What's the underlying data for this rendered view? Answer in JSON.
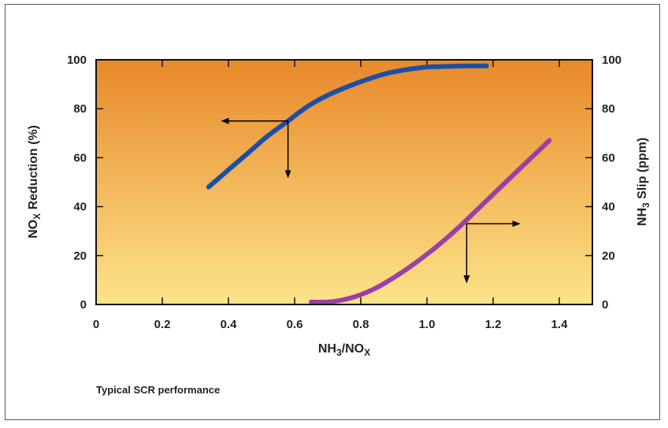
{
  "chart_data": {
    "type": "line",
    "caption": "Typical SCR performance",
    "xlabel": {
      "main": "NH",
      "sub1": "3",
      "mid": "/NO",
      "sub2": "X"
    },
    "ylabel_left": {
      "pre": "NO",
      "sub": "X",
      "post": " Reduction (%)"
    },
    "ylabel_right": {
      "pre": "NH",
      "sub": "3",
      "post": " Slip (ppm)"
    },
    "xlim": [
      0,
      1.5
    ],
    "ylim_left": [
      0,
      100
    ],
    "ylim_right": [
      0,
      100
    ],
    "x_ticks": [
      {
        "value": 0,
        "label": "0"
      },
      {
        "value": 0.2,
        "label": "0.2"
      },
      {
        "value": 0.4,
        "label": "0.4"
      },
      {
        "value": 0.6,
        "label": "0.6"
      },
      {
        "value": 0.8,
        "label": "0.8"
      },
      {
        "value": 1.0,
        "label": "1.0"
      },
      {
        "value": 1.2,
        "label": "1.2"
      },
      {
        "value": 1.4,
        "label": "1.4"
      }
    ],
    "y_ticks_left": [
      {
        "value": 0,
        "label": "0"
      },
      {
        "value": 20,
        "label": "20"
      },
      {
        "value": 40,
        "label": "40"
      },
      {
        "value": 60,
        "label": "60"
      },
      {
        "value": 80,
        "label": "80"
      },
      {
        "value": 100,
        "label": "100"
      }
    ],
    "y_ticks_right": [
      {
        "value": 0,
        "label": "0"
      },
      {
        "value": 20,
        "label": "20"
      },
      {
        "value": 40,
        "label": "40"
      },
      {
        "value": 60,
        "label": "60"
      },
      {
        "value": 80,
        "label": "80"
      },
      {
        "value": 100,
        "label": "100"
      }
    ],
    "background_gradient": {
      "top": "#E8892A",
      "bottom": "#FDE48A"
    },
    "series": [
      {
        "axis": "left",
        "color": "#1B4FA8",
        "x": [
          0.34,
          0.4,
          0.46,
          0.52,
          0.58,
          0.64,
          0.7,
          0.76,
          0.82,
          0.88,
          0.94,
          1.0,
          1.06,
          1.12,
          1.18
        ],
        "y": [
          48,
          55,
          62,
          69,
          75,
          81,
          85.5,
          89,
          92,
          94.5,
          96,
          97,
          97.3,
          97.5,
          97.5
        ]
      },
      {
        "axis": "right",
        "color": "#9B3FA6",
        "x": [
          0.65,
          0.7,
          0.75,
          0.8,
          0.85,
          0.9,
          0.95,
          1.0,
          1.05,
          1.1,
          1.15,
          1.2,
          1.25,
          1.3,
          1.37
        ],
        "y": [
          1,
          1,
          2,
          4,
          7,
          11,
          15.5,
          20.5,
          26,
          32,
          38.5,
          45,
          51.5,
          58,
          67
        ]
      }
    ],
    "annotations": [
      {
        "from": [
          0.58,
          75
        ],
        "to": [
          0.38,
          75
        ],
        "axis": "left"
      },
      {
        "from": [
          0.58,
          75
        ],
        "to": [
          0.58,
          52
        ],
        "axis": "left"
      },
      {
        "from": [
          1.12,
          33
        ],
        "to": [
          1.28,
          33
        ],
        "axis": "right"
      },
      {
        "from": [
          1.12,
          33
        ],
        "to": [
          1.12,
          9
        ],
        "axis": "right"
      }
    ]
  }
}
